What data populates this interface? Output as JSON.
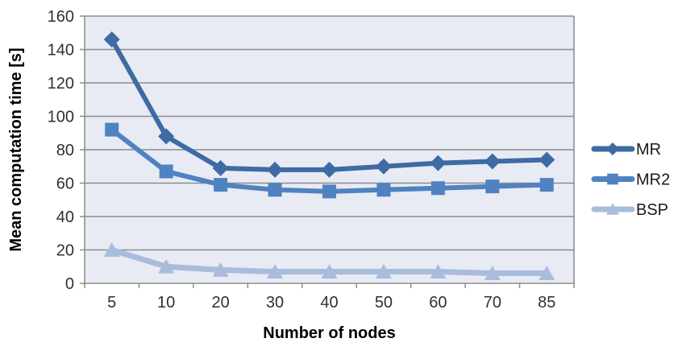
{
  "chart_data": {
    "type": "line",
    "title": "",
    "xlabel": "Number of nodes",
    "ylabel": "Mean computation time [s]",
    "categories": [
      "5",
      "10",
      "20",
      "30",
      "40",
      "50",
      "60",
      "70",
      "85"
    ],
    "y_ticks": [
      0,
      20,
      40,
      60,
      80,
      100,
      120,
      140,
      160
    ],
    "ylim": [
      0,
      160
    ],
    "grid": true,
    "legend_position": "right",
    "series": [
      {
        "name": "MR",
        "marker": "diamond",
        "color": "#3e6ba3",
        "line_width": 6,
        "values": [
          146,
          88,
          69,
          68,
          68,
          70,
          72,
          73,
          74
        ]
      },
      {
        "name": "MR2",
        "marker": "square",
        "color": "#4f82c0",
        "line_width": 6,
        "values": [
          92,
          67,
          59,
          56,
          55,
          56,
          57,
          58,
          59
        ]
      },
      {
        "name": "BSP",
        "marker": "triangle",
        "color": "#a9bcdc",
        "line_width": 7,
        "values": [
          20,
          10,
          8,
          7,
          7,
          7,
          7,
          6,
          6
        ]
      }
    ],
    "colors": {
      "plot_bg": "#e8ebf4",
      "gridline": "#8c8c8c",
      "axis_line": "#8c8c8c",
      "tick_text": "#303030",
      "title_text": "#000000",
      "outer_bg": "#ffffff"
    }
  }
}
